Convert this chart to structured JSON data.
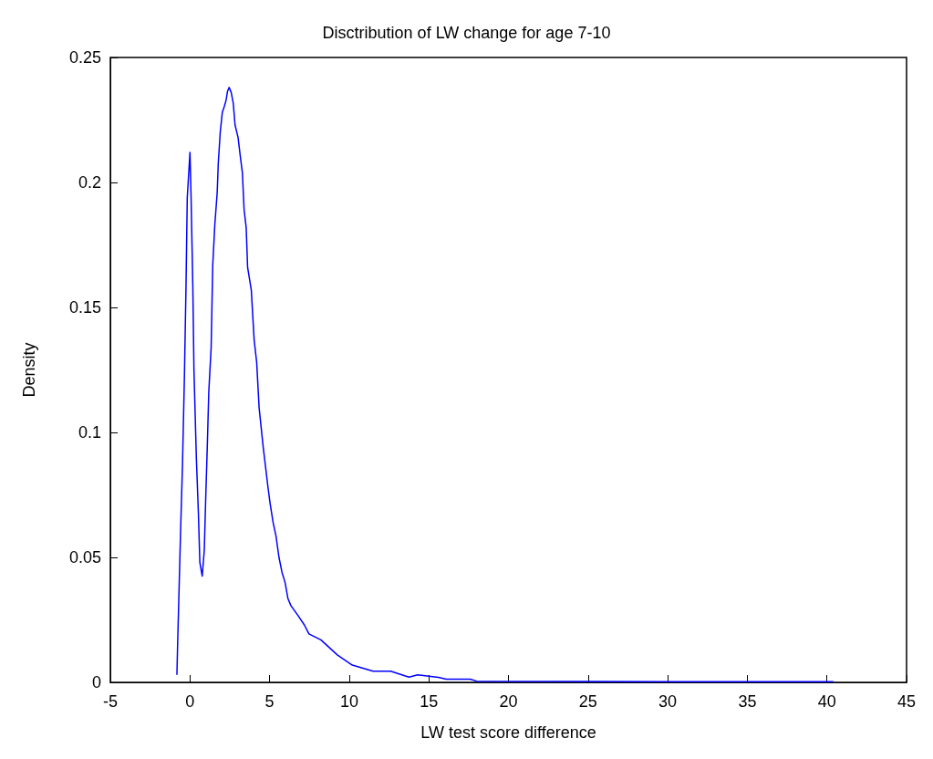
{
  "chart_data": {
    "type": "line",
    "title": "Disctribution of LW change for age 7-10",
    "xlabel": "LW test score difference",
    "ylabel": "Density",
    "xlim": [
      -5,
      45
    ],
    "xticks": [
      -5,
      0,
      5,
      10,
      15,
      20,
      25,
      30,
      35,
      40,
      45
    ],
    "ylim": [
      0,
      0.25
    ],
    "yticks": [
      0,
      0.05,
      0.1,
      0.15,
      0.2,
      0.25
    ],
    "grid": false,
    "marker": "none",
    "line_style": "solid",
    "series": [
      {
        "color": "#0000ff",
        "x": [
          -0.82,
          -0.78,
          -0.69,
          -0.6,
          -0.47,
          -0.35,
          -0.25,
          -0.17,
          0,
          0.07,
          0.18,
          0.25,
          0.4,
          0.53,
          0.62,
          0.77,
          0.9,
          0.99,
          1.09,
          1.18,
          1.33,
          1.43,
          1.56,
          1.71,
          1.78,
          1.9,
          2.03,
          2.16,
          2.27,
          2.36,
          2.46,
          2.59,
          2.72,
          2.83,
          3.02,
          3.15,
          3.29,
          3.4,
          3.53,
          3.62,
          3.85,
          4.03,
          4.19,
          4.34,
          4.6,
          4.75,
          4.9,
          5.03,
          5.22,
          5.4,
          5.59,
          5.78,
          5.97,
          6.15,
          6.34,
          6.81,
          7.19,
          7.47,
          8.22,
          9.25,
          10.19,
          11.5,
          12.6,
          13.75,
          14.3,
          15.6,
          16.1,
          17.6,
          18.0,
          25,
          30,
          35.7,
          40.4
        ],
        "values": [
          0.003,
          0.014,
          0.036,
          0.058,
          0.087,
          0.122,
          0.158,
          0.194,
          0.212,
          0.194,
          0.158,
          0.125,
          0.09,
          0.0675,
          0.048,
          0.0425,
          0.053,
          0.074,
          0.095,
          0.116,
          0.134,
          0.167,
          0.183,
          0.196,
          0.208,
          0.22,
          0.228,
          0.2305,
          0.233,
          0.2365,
          0.238,
          0.236,
          0.2316,
          0.223,
          0.218,
          0.211,
          0.204,
          0.189,
          0.182,
          0.166,
          0.157,
          0.137,
          0.128,
          0.11,
          0.094,
          0.086,
          0.078,
          0.0717,
          0.064,
          0.0586,
          0.05,
          0.044,
          0.04,
          0.0336,
          0.0307,
          0.0265,
          0.0229,
          0.0194,
          0.017,
          0.011,
          0.0069,
          0.0045,
          0.0045,
          0.0021,
          0.003,
          0.002,
          0.0013,
          0.0013,
          0.0005,
          0.0004,
          0.0003,
          0.0003,
          0.0003
        ]
      }
    ]
  }
}
